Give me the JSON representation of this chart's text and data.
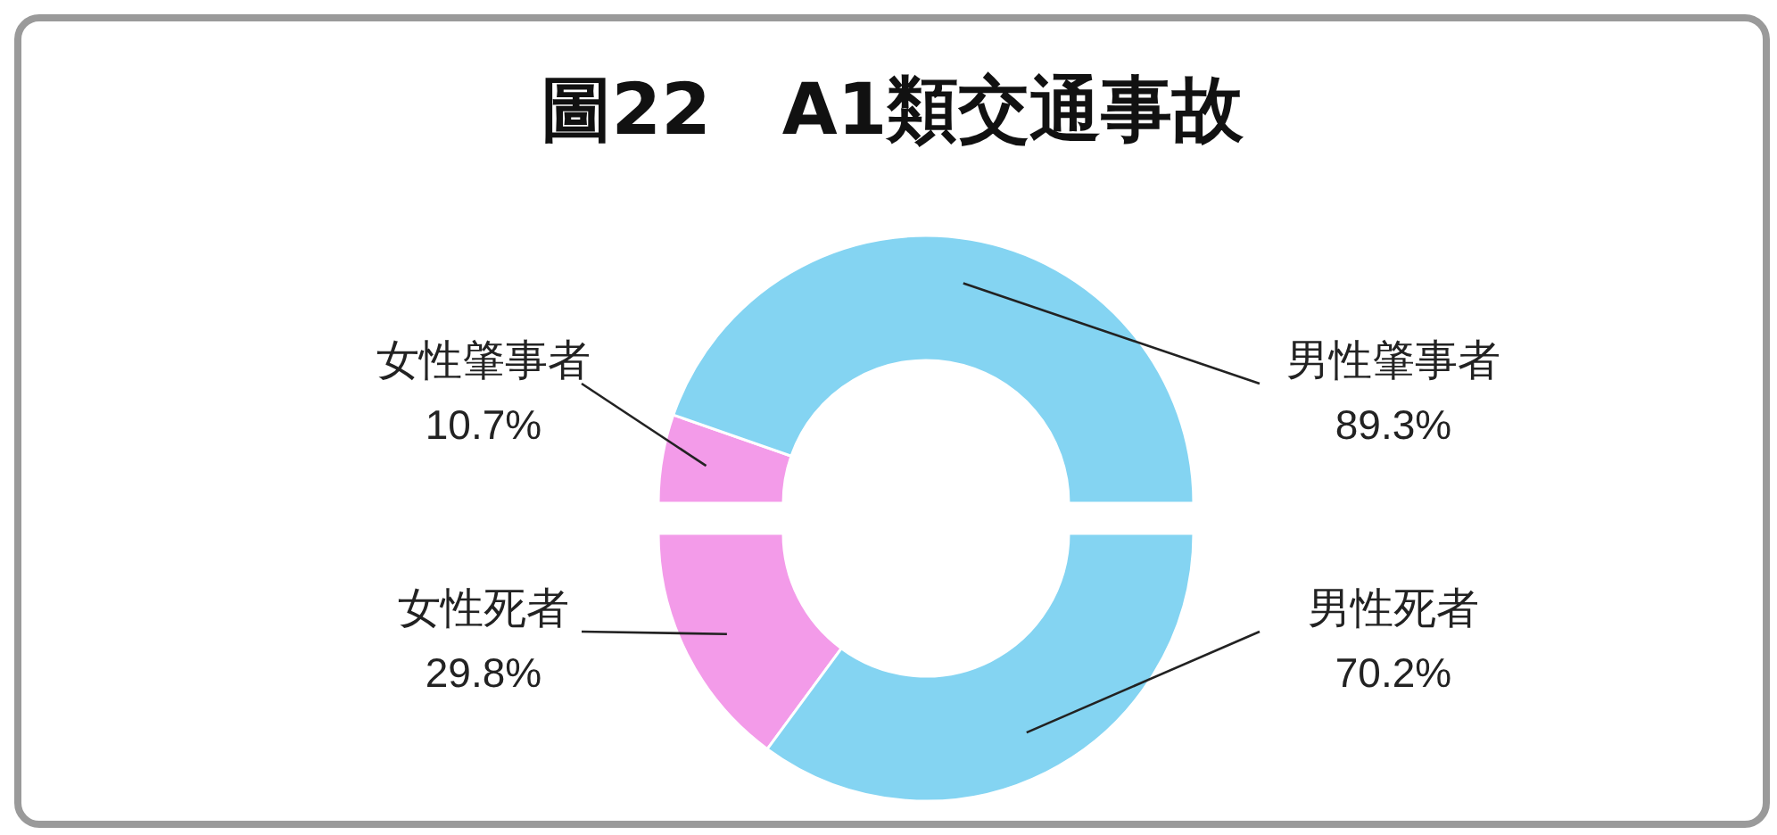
{
  "chart_data": [
    {
      "type": "donut",
      "title": "圖22　A1類交通事故",
      "categories": [
        "女性肇事者",
        "男性肇事者"
      ],
      "values": [
        10.7,
        89.3
      ],
      "value_labels": [
        "10.7%",
        "89.3%"
      ],
      "colors": [
        "#f39be9",
        "#84d4f2"
      ]
    },
    {
      "type": "donut",
      "categories": [
        "女性死者",
        "男性死者"
      ],
      "values": [
        29.8,
        70.2
      ],
      "value_labels": [
        "29.8%",
        "70.2%"
      ],
      "colors": [
        "#f39be9",
        "#84d4f2"
      ]
    }
  ]
}
